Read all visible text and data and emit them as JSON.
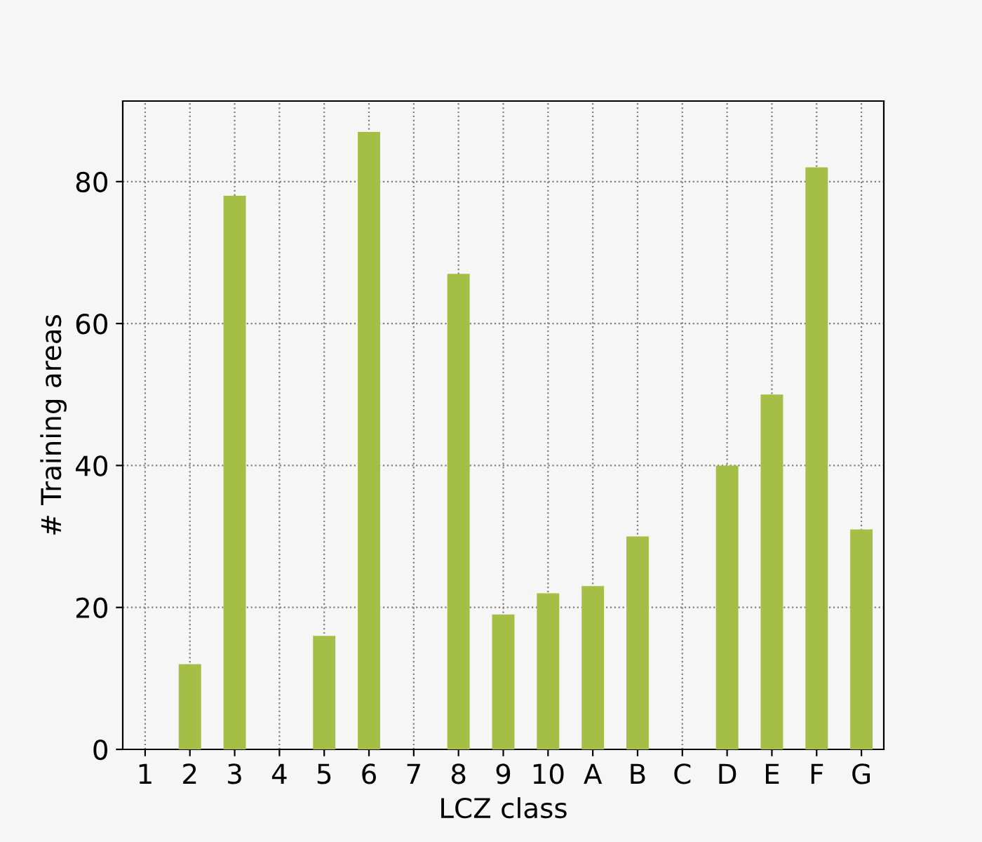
{
  "chart_data": {
    "type": "bar",
    "xlabel": "LCZ class",
    "ylabel": "# Training areas",
    "categories": [
      "1",
      "2",
      "3",
      "4",
      "5",
      "6",
      "7",
      "8",
      "9",
      "10",
      "A",
      "B",
      "C",
      "D",
      "E",
      "F",
      "G"
    ],
    "values": [
      0,
      12,
      78,
      0,
      16,
      87,
      0,
      67,
      19,
      22,
      23,
      30,
      0,
      40,
      50,
      82,
      31
    ],
    "color": "#a5be46",
    "ylim": [
      0,
      91.35
    ],
    "yticks": [
      0,
      20,
      40,
      60,
      80
    ],
    "grid": true
  }
}
